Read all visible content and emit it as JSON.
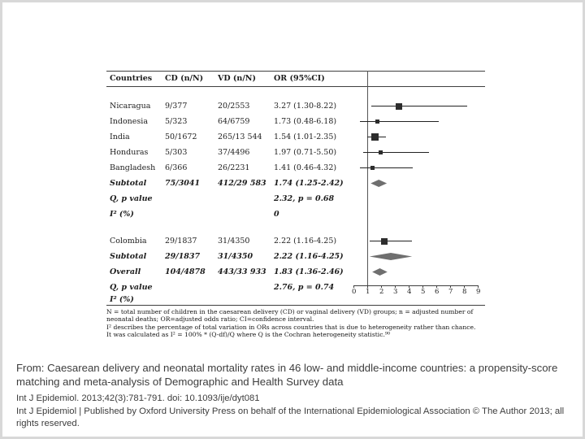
{
  "figure": {
    "columns": [
      "Countries",
      "CD (n/N)",
      "VD (n/N)",
      "OR (95%CI)"
    ],
    "rows": [
      {
        "label": "Nicaragua",
        "cd": "9/377",
        "vd": "20/2553",
        "or": "3.27 (1.30-8.22)",
        "est": 3.27,
        "lo": 1.3,
        "hi": 8.22,
        "marker": "square",
        "size": 8,
        "emph": false
      },
      {
        "label": "Indonesia",
        "cd": "5/323",
        "vd": "64/6759",
        "or": "1.73 (0.48-6.18)",
        "est": 1.73,
        "lo": 0.48,
        "hi": 6.18,
        "marker": "square",
        "size": 5,
        "emph": false
      },
      {
        "label": "India",
        "cd": "50/1672",
        "vd": "265/13 544",
        "or": "1.54 (1.01-2.35)",
        "est": 1.54,
        "lo": 1.01,
        "hi": 2.35,
        "marker": "square",
        "size": 9,
        "emph": false
      },
      {
        "label": "Honduras",
        "cd": "5/303",
        "vd": "37/4496",
        "or": "1.97 (0.71-5.50)",
        "est": 1.97,
        "lo": 0.71,
        "hi": 5.5,
        "marker": "square",
        "size": 5,
        "emph": false
      },
      {
        "label": "Bangladesh",
        "cd": "6/366",
        "vd": "26/2231",
        "or": "1.41 (0.46-4.32)",
        "est": 1.41,
        "lo": 0.46,
        "hi": 4.32,
        "marker": "square",
        "size": 5,
        "emph": false
      },
      {
        "label": "Subtotal",
        "cd": "75/3041",
        "vd": "412/29 583",
        "or": "1.74 (1.25-2.42)",
        "est": 1.74,
        "lo": 1.25,
        "hi": 2.42,
        "marker": "diamond",
        "emph": true
      },
      {
        "label": "Q, p value",
        "cd": "",
        "vd": "",
        "or": "2.32, p = 0.68",
        "marker": "none",
        "emph": true
      },
      {
        "label": "I² (%)",
        "cd": "",
        "vd": "",
        "or": "0",
        "marker": "none",
        "emph": true
      },
      {
        "label": "Colombia",
        "cd": "29/1837",
        "vd": "31/4350",
        "or": "2.22 (1.16-4.25)",
        "est": 2.22,
        "lo": 1.16,
        "hi": 4.25,
        "marker": "square",
        "size": 8,
        "emph": false
      },
      {
        "label": "Subtotal",
        "cd": "29/1837",
        "vd": "31/4350",
        "or": "2.22 (1.16-4.25)",
        "est": 2.22,
        "lo": 1.16,
        "hi": 4.25,
        "marker": "diamond",
        "emph": true
      },
      {
        "label": "Overall",
        "cd": "104/4878",
        "vd": "443/33 933",
        "or": "1.83 (1.36-2.46)",
        "est": 1.83,
        "lo": 1.36,
        "hi": 2.46,
        "marker": "diamond",
        "emph": true
      },
      {
        "label": "Q, p value",
        "cd": "",
        "vd": "",
        "or": "2.76, p = 0.74",
        "marker": "none",
        "emph": true
      },
      {
        "label": "I² (%)",
        "cd": "",
        "vd": "",
        "or": "",
        "marker": "none",
        "emph": true
      }
    ],
    "axis_ticks": [
      0,
      1,
      2,
      3,
      4,
      5,
      6,
      7,
      8,
      9
    ],
    "footnotes": [
      "N = total number of children in the caesarean delivery (CD) or vaginal delivery (VD) groups; n = adjusted number of neonatal deaths; OR=adjusted odds ratio; CI=confidence interval.",
      "I² describes the percentage of total variation in ORs across countries that is due to heterogeneity rather than chance.",
      "It was calculated as I² = 100% * (Q-df)/Q where Q is the Cochran heterogeneity statistic.⁹⁰"
    ]
  },
  "caption": {
    "title": "From: Caesarean delivery and neonatal mortality rates in 46 low- and middle-income countries: a propensity-score matching and meta-analysis of Demographic and Health Survey data",
    "citation": "Int J Epidemiol. 2013;42(3):781-791. doi: 10.1093/ije/dyt081",
    "copyright": "Int J Epidemiol | Published by Oxford University Press on behalf of the International Epidemiological Association © The Author 2013; all rights reserved."
  },
  "chart_data": {
    "type": "scatter",
    "subtype": "forest-plot",
    "title": "Caesarean delivery vs vaginal delivery: adjusted odds ratios for neonatal mortality",
    "xlabel": "OR (95% CI)",
    "xlim": [
      0,
      9
    ],
    "x_ticks": [
      0,
      1,
      2,
      3,
      4,
      5,
      6,
      7,
      8,
      9
    ],
    "reference_line_x": 1,
    "series": [
      {
        "name": "Nicaragua",
        "or": 3.27,
        "ci_low": 1.3,
        "ci_high": 8.22,
        "marker": "square"
      },
      {
        "name": "Indonesia",
        "or": 1.73,
        "ci_low": 0.48,
        "ci_high": 6.18,
        "marker": "square"
      },
      {
        "name": "India",
        "or": 1.54,
        "ci_low": 1.01,
        "ci_high": 2.35,
        "marker": "square"
      },
      {
        "name": "Honduras",
        "or": 1.97,
        "ci_low": 0.71,
        "ci_high": 5.5,
        "marker": "square"
      },
      {
        "name": "Bangladesh",
        "or": 1.41,
        "ci_low": 0.46,
        "ci_high": 4.32,
        "marker": "square"
      },
      {
        "name": "Subtotal (group 1)",
        "or": 1.74,
        "ci_low": 1.25,
        "ci_high": 2.42,
        "marker": "diamond",
        "q": 2.32,
        "p": 0.68,
        "i_squared_pct": 0
      },
      {
        "name": "Colombia",
        "or": 2.22,
        "ci_low": 1.16,
        "ci_high": 4.25,
        "marker": "square"
      },
      {
        "name": "Subtotal (group 2)",
        "or": 2.22,
        "ci_low": 1.16,
        "ci_high": 4.25,
        "marker": "diamond"
      },
      {
        "name": "Overall",
        "or": 1.83,
        "ci_low": 1.36,
        "ci_high": 2.46,
        "marker": "diamond",
        "q": 2.76,
        "p": 0.74
      }
    ]
  }
}
